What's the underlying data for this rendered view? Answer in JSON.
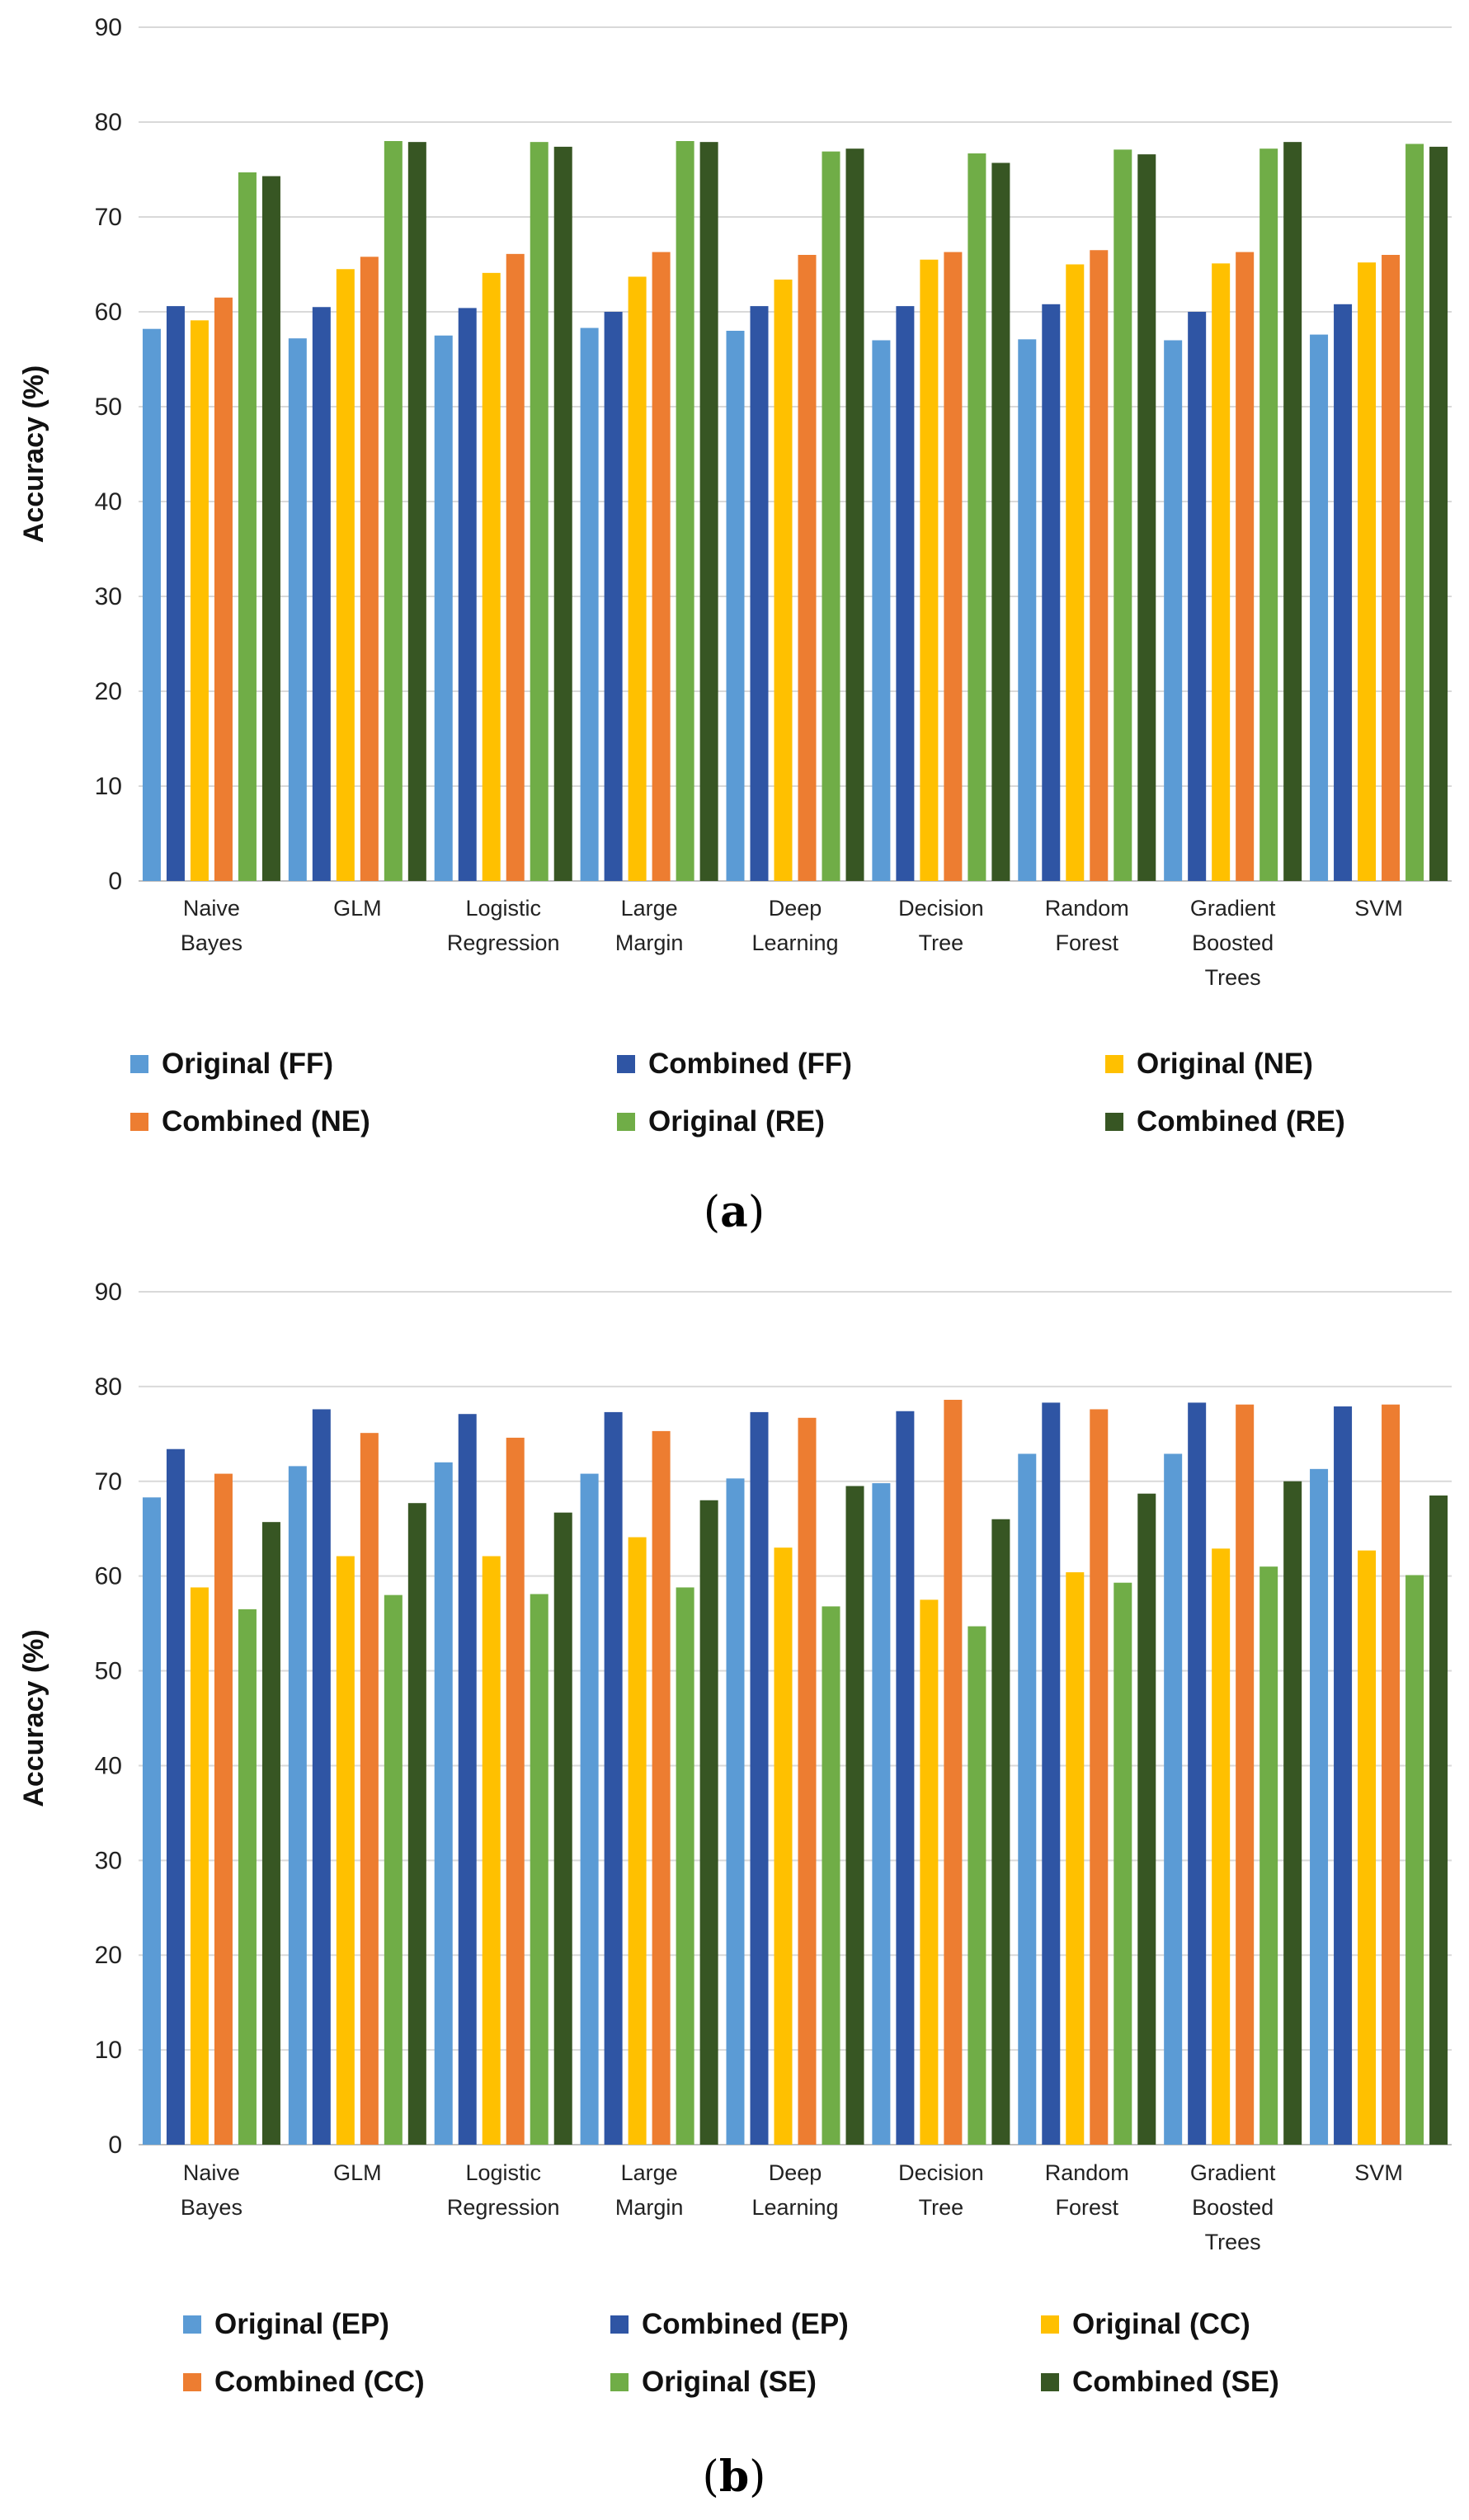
{
  "chart_data": [
    {
      "type": "bar",
      "panel_label": "a",
      "ylabel": "Accuracy (%)",
      "xlabel": "",
      "ylim": [
        0,
        90
      ],
      "yticks": [
        0,
        10,
        20,
        30,
        40,
        50,
        60,
        70,
        80,
        90
      ],
      "grid": true,
      "legend_position": "bottom",
      "categories": [
        [
          "Naive",
          "Bayes"
        ],
        [
          "GLM"
        ],
        [
          "Logistic",
          "Regression"
        ],
        [
          "Large",
          "Margin"
        ],
        [
          "Deep",
          "Learning"
        ],
        [
          "Decision",
          "Tree"
        ],
        [
          "Random",
          "Forest"
        ],
        [
          "Gradient",
          "Boosted",
          "Trees"
        ],
        [
          "SVM"
        ]
      ],
      "series": [
        {
          "name": "Original (FF)",
          "color": "#5b9bd5",
          "values": [
            58.2,
            57.2,
            57.5,
            58.3,
            58.0,
            57.0,
            57.1,
            57.0,
            57.6
          ]
        },
        {
          "name": "Combined (FF)",
          "color": "#2f55a4",
          "values": [
            60.6,
            60.5,
            60.4,
            60.0,
            60.6,
            60.6,
            60.8,
            60.0,
            60.8
          ]
        },
        {
          "name": "Original (NE)",
          "color": "#ffc000",
          "values": [
            59.1,
            64.5,
            64.1,
            63.7,
            63.4,
            65.5,
            65.0,
            65.1,
            65.2
          ]
        },
        {
          "name": "Combined (NE)",
          "color": "#ed7d31",
          "values": [
            61.5,
            65.8,
            66.1,
            66.3,
            66.0,
            66.3,
            66.5,
            66.3,
            66.0
          ]
        },
        {
          "name": "Original (RE)",
          "color": "#70ad47",
          "values": [
            74.7,
            78.0,
            77.9,
            78.0,
            76.9,
            76.7,
            77.1,
            77.2,
            77.7
          ]
        },
        {
          "name": "Combined (RE)",
          "color": "#375623",
          "values": [
            74.3,
            77.9,
            77.4,
            77.9,
            77.2,
            75.7,
            76.6,
            77.9,
            77.4
          ]
        }
      ]
    },
    {
      "type": "bar",
      "panel_label": "b",
      "ylabel": "Accuracy (%)",
      "xlabel": "",
      "ylim": [
        0,
        90
      ],
      "yticks": [
        0,
        10,
        20,
        30,
        40,
        50,
        60,
        70,
        80,
        90
      ],
      "grid": true,
      "legend_position": "bottom",
      "categories": [
        [
          "Naive",
          "Bayes"
        ],
        [
          "GLM"
        ],
        [
          "Logistic",
          "Regression"
        ],
        [
          "Large",
          "Margin"
        ],
        [
          "Deep",
          "Learning"
        ],
        [
          "Decision",
          "Tree"
        ],
        [
          "Random",
          "Forest"
        ],
        [
          "Gradient",
          "Boosted",
          "Trees"
        ],
        [
          "SVM"
        ]
      ],
      "series": [
        {
          "name": "Original (EP)",
          "color": "#5b9bd5",
          "values": [
            68.3,
            71.6,
            72.0,
            70.8,
            70.3,
            69.8,
            72.9,
            72.9,
            71.3
          ]
        },
        {
          "name": "Combined (EP)",
          "color": "#2f55a4",
          "values": [
            73.4,
            77.6,
            77.1,
            77.3,
            77.3,
            77.4,
            78.3,
            78.3,
            77.9
          ]
        },
        {
          "name": "Original (CC)",
          "color": "#ffc000",
          "values": [
            58.8,
            62.1,
            62.1,
            64.1,
            63.0,
            57.5,
            60.4,
            62.9,
            62.7
          ]
        },
        {
          "name": "Combined (CC)",
          "color": "#ed7d31",
          "values": [
            70.8,
            75.1,
            74.6,
            75.3,
            76.7,
            78.6,
            77.6,
            78.1,
            78.1
          ]
        },
        {
          "name": "Original (SE)",
          "color": "#70ad47",
          "values": [
            56.5,
            58.0,
            58.1,
            58.8,
            56.8,
            54.7,
            59.3,
            61.0,
            60.1
          ]
        },
        {
          "name": "Combined (SE)",
          "color": "#375623",
          "values": [
            65.7,
            67.7,
            66.7,
            68.0,
            69.5,
            66.0,
            68.7,
            70.0,
            68.5
          ]
        }
      ]
    }
  ],
  "panels": {
    "a": {
      "open": "(",
      "letter": "a",
      "close": ")"
    },
    "b": {
      "open": "(",
      "letter": "b",
      "close": ")"
    }
  }
}
